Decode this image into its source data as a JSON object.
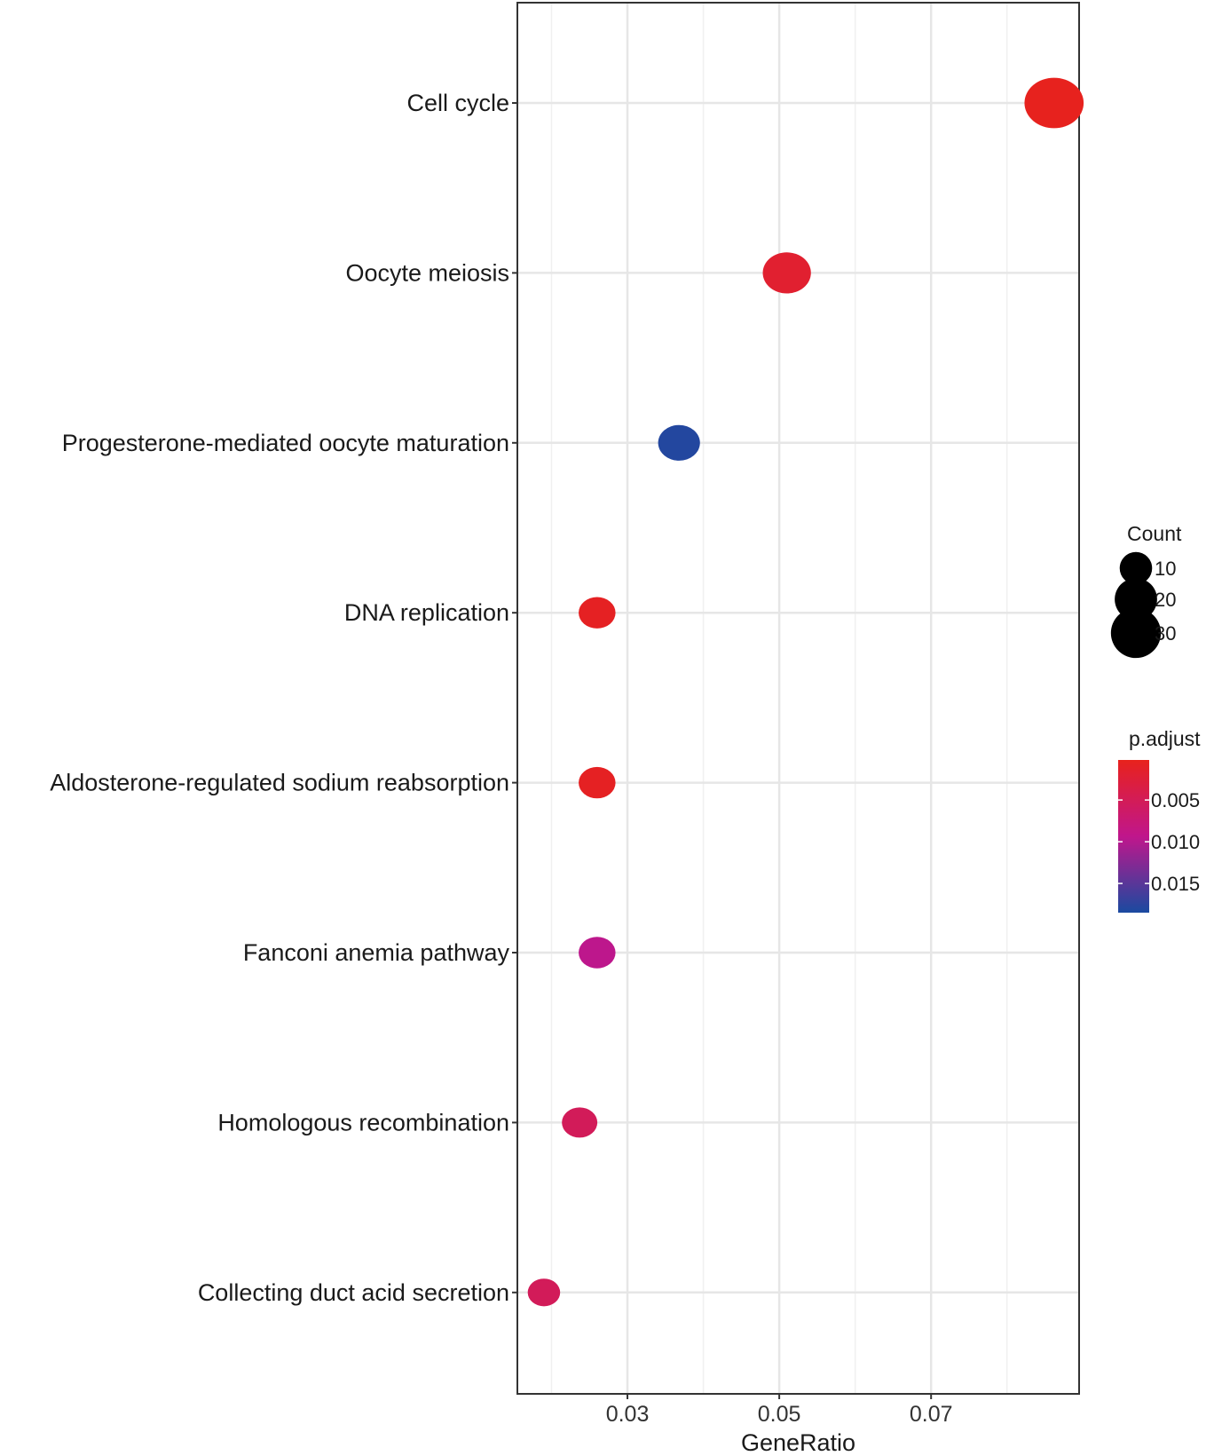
{
  "chart_data": {
    "type": "scatter",
    "title": "",
    "xlabel": "GeneRatio",
    "ylabel": "",
    "xlim": [
      0.0155,
      0.0895
    ],
    "x_ticks": [
      "0.03",
      "0.05",
      "0.07"
    ],
    "x_tick_values": [
      0.03,
      0.05,
      0.07
    ],
    "grid": true,
    "categories": [
      "Cell cycle",
      "Oocyte meiosis",
      "Progesterone-mediated oocyte maturation",
      "DNA replication",
      "Aldosterone-regulated sodium reabsorption",
      "Fanconi anemia pathway",
      "Homologous recombination",
      "Collecting duct acid secretion"
    ],
    "points": [
      {
        "category": "Cell cycle",
        "x": 0.0862,
        "count": 33,
        "p_adjust": 0.0004
      },
      {
        "category": "Oocyte meiosis",
        "x": 0.051,
        "count": 20,
        "p_adjust": 0.0018
      },
      {
        "category": "Progesterone-mediated oocyte maturation",
        "x": 0.0368,
        "count": 14,
        "p_adjust": 0.018
      },
      {
        "category": "DNA replication",
        "x": 0.026,
        "count": 10,
        "p_adjust": 0.0008
      },
      {
        "category": "Aldosterone-regulated sodium reabsorption",
        "x": 0.026,
        "count": 10,
        "p_adjust": 0.0008
      },
      {
        "category": "Fanconi anemia pathway",
        "x": 0.026,
        "count": 10,
        "p_adjust": 0.0095
      },
      {
        "category": "Homologous recombination",
        "x": 0.0237,
        "count": 9,
        "p_adjust": 0.0052
      },
      {
        "category": "Collecting duct acid secretion",
        "x": 0.019,
        "count": 7,
        "p_adjust": 0.0052
      }
    ],
    "size_legend": {
      "title": "Count",
      "values": [
        10,
        20,
        30
      ],
      "labels": [
        "10",
        "20",
        "30"
      ]
    },
    "color_legend": {
      "title": "p.adjust",
      "range": [
        0.0002,
        0.0185
      ],
      "tick_values": [
        0.005,
        0.01,
        0.015
      ],
      "tick_labels": [
        "0.005",
        "0.010",
        "0.015"
      ],
      "low_color": "#e8221c",
      "mid_color": "#c0168c",
      "high_color": "#1a4aa0"
    },
    "legend_placement": "right"
  }
}
